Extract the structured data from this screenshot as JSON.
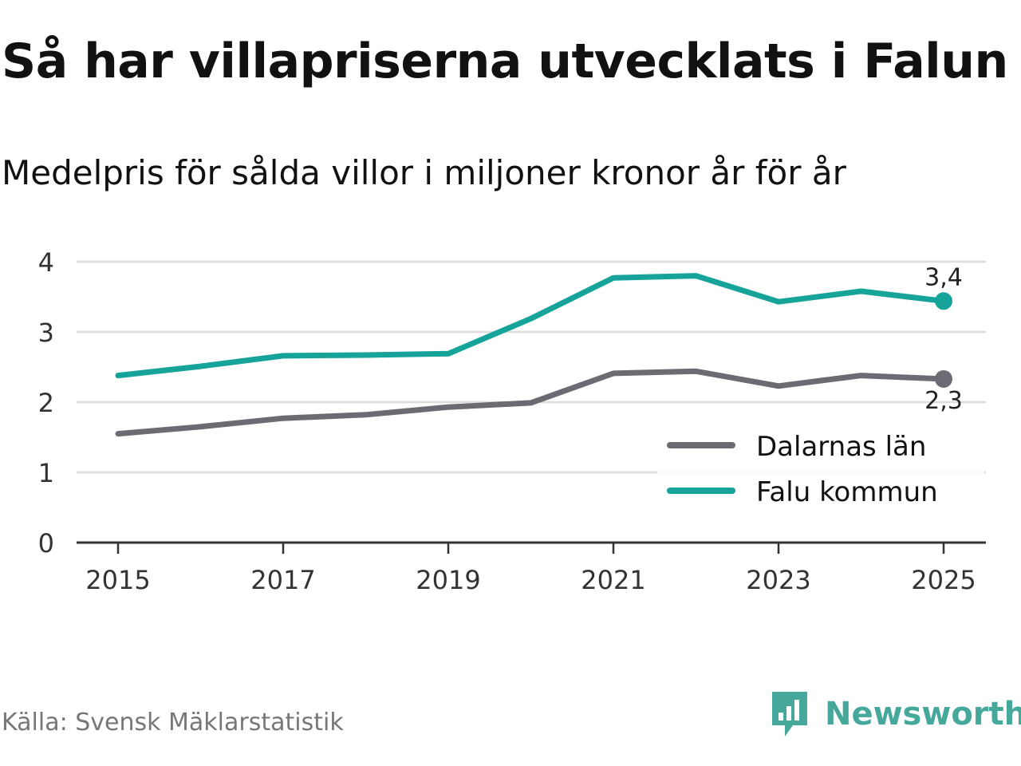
{
  "header": {
    "title": "Så har villapriserna utvecklats i Falun",
    "subtitle": "Medelpris för sålda villor i miljoner kronor år för år"
  },
  "footer": {
    "source": "Källa: Svensk Mäklarstatistik",
    "brand": "Newsworthy",
    "brand_icon": "newsworthy-logo-icon"
  },
  "colors": {
    "falu": "#16a399",
    "dalarna": "#6c6b73",
    "grid": "#dcdcdc",
    "axis": "#333333",
    "brand": "#45a89b"
  },
  "chart_data": {
    "type": "line",
    "title": "Så har villapriserna utvecklats i Falun",
    "subtitle": "Medelpris för sålda villor i miljoner kronor år för år",
    "xlabel": "",
    "ylabel": "",
    "x": [
      2015,
      2016,
      2017,
      2018,
      2019,
      2020,
      2021,
      2022,
      2023,
      2024,
      2025
    ],
    "xlim": [
      2015,
      2025
    ],
    "xticks": [
      "2015",
      "2017",
      "2019",
      "2021",
      "2023",
      "2025"
    ],
    "ylim": [
      0,
      4
    ],
    "yticks": [
      "0",
      "1",
      "2",
      "3",
      "4"
    ],
    "grid": true,
    "legend_position": "bottom-right",
    "series": [
      {
        "name": "Dalarnas län",
        "color": "#6c6b73",
        "values": [
          1.55,
          1.65,
          1.77,
          1.82,
          1.93,
          1.99,
          2.41,
          2.44,
          2.23,
          2.38,
          2.33
        ],
        "end_label": "2,3"
      },
      {
        "name": "Falu kommun",
        "color": "#16a399",
        "values": [
          2.38,
          2.51,
          2.66,
          2.67,
          2.69,
          3.19,
          3.77,
          3.8,
          3.43,
          3.58,
          3.44
        ],
        "end_label": "3,4"
      }
    ]
  }
}
